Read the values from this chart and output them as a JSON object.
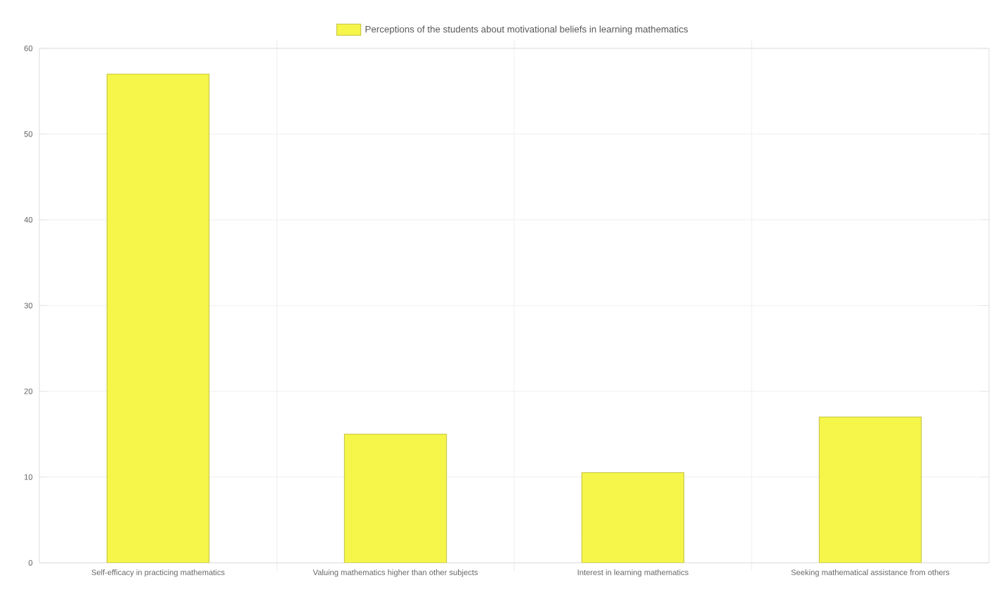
{
  "chart_data": {
    "type": "bar",
    "categories": [
      "Self-efficacy in practicing mathematics",
      "Valuing mathematics higher than other subjects",
      "Interest in learning mathematics",
      "Seeking mathematical assistance from others"
    ],
    "series": [
      {
        "name": "Perceptions of the students about motivational beliefs in learning mathematics",
        "color": "#f5f54a",
        "values": [
          57,
          15,
          10.5,
          17
        ]
      }
    ],
    "ylim": [
      0,
      60
    ],
    "yticks": [
      0,
      10,
      20,
      30,
      40,
      50,
      60
    ],
    "grid": true,
    "legend": "top"
  }
}
